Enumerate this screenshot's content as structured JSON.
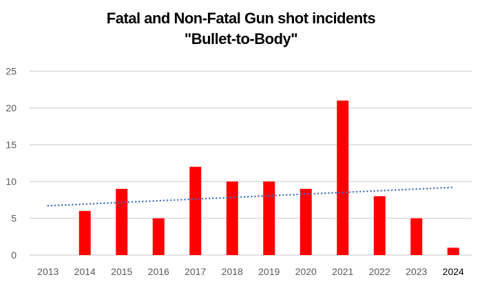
{
  "chart_data": {
    "type": "bar",
    "title": "Fatal and Non-Fatal Gun shot incidents",
    "subtitle": "\"Bullet-to-Body\"",
    "xlabel": "",
    "ylabel": "",
    "categories": [
      "2013",
      "2014",
      "2015",
      "2016",
      "2017",
      "2018",
      "2019",
      "2020",
      "2021",
      "2022",
      "2023",
      "2024"
    ],
    "values": [
      0,
      6,
      9,
      5,
      12,
      10,
      10,
      9,
      21,
      8,
      5,
      1
    ],
    "ylim": [
      0,
      25
    ],
    "yticks": [
      0,
      5,
      10,
      15,
      20,
      25
    ],
    "grid": true,
    "legend": "none",
    "trendline": {
      "type": "linear",
      "style": "dotted",
      "start": 6.7,
      "end": 9.2
    },
    "colors": {
      "bar": "#ff0000",
      "trendline": "#4472c4",
      "grid": "#d9d9d9",
      "tick_label": "#595959",
      "highlight_label": "#000000"
    },
    "highlighted_category": "2024"
  }
}
